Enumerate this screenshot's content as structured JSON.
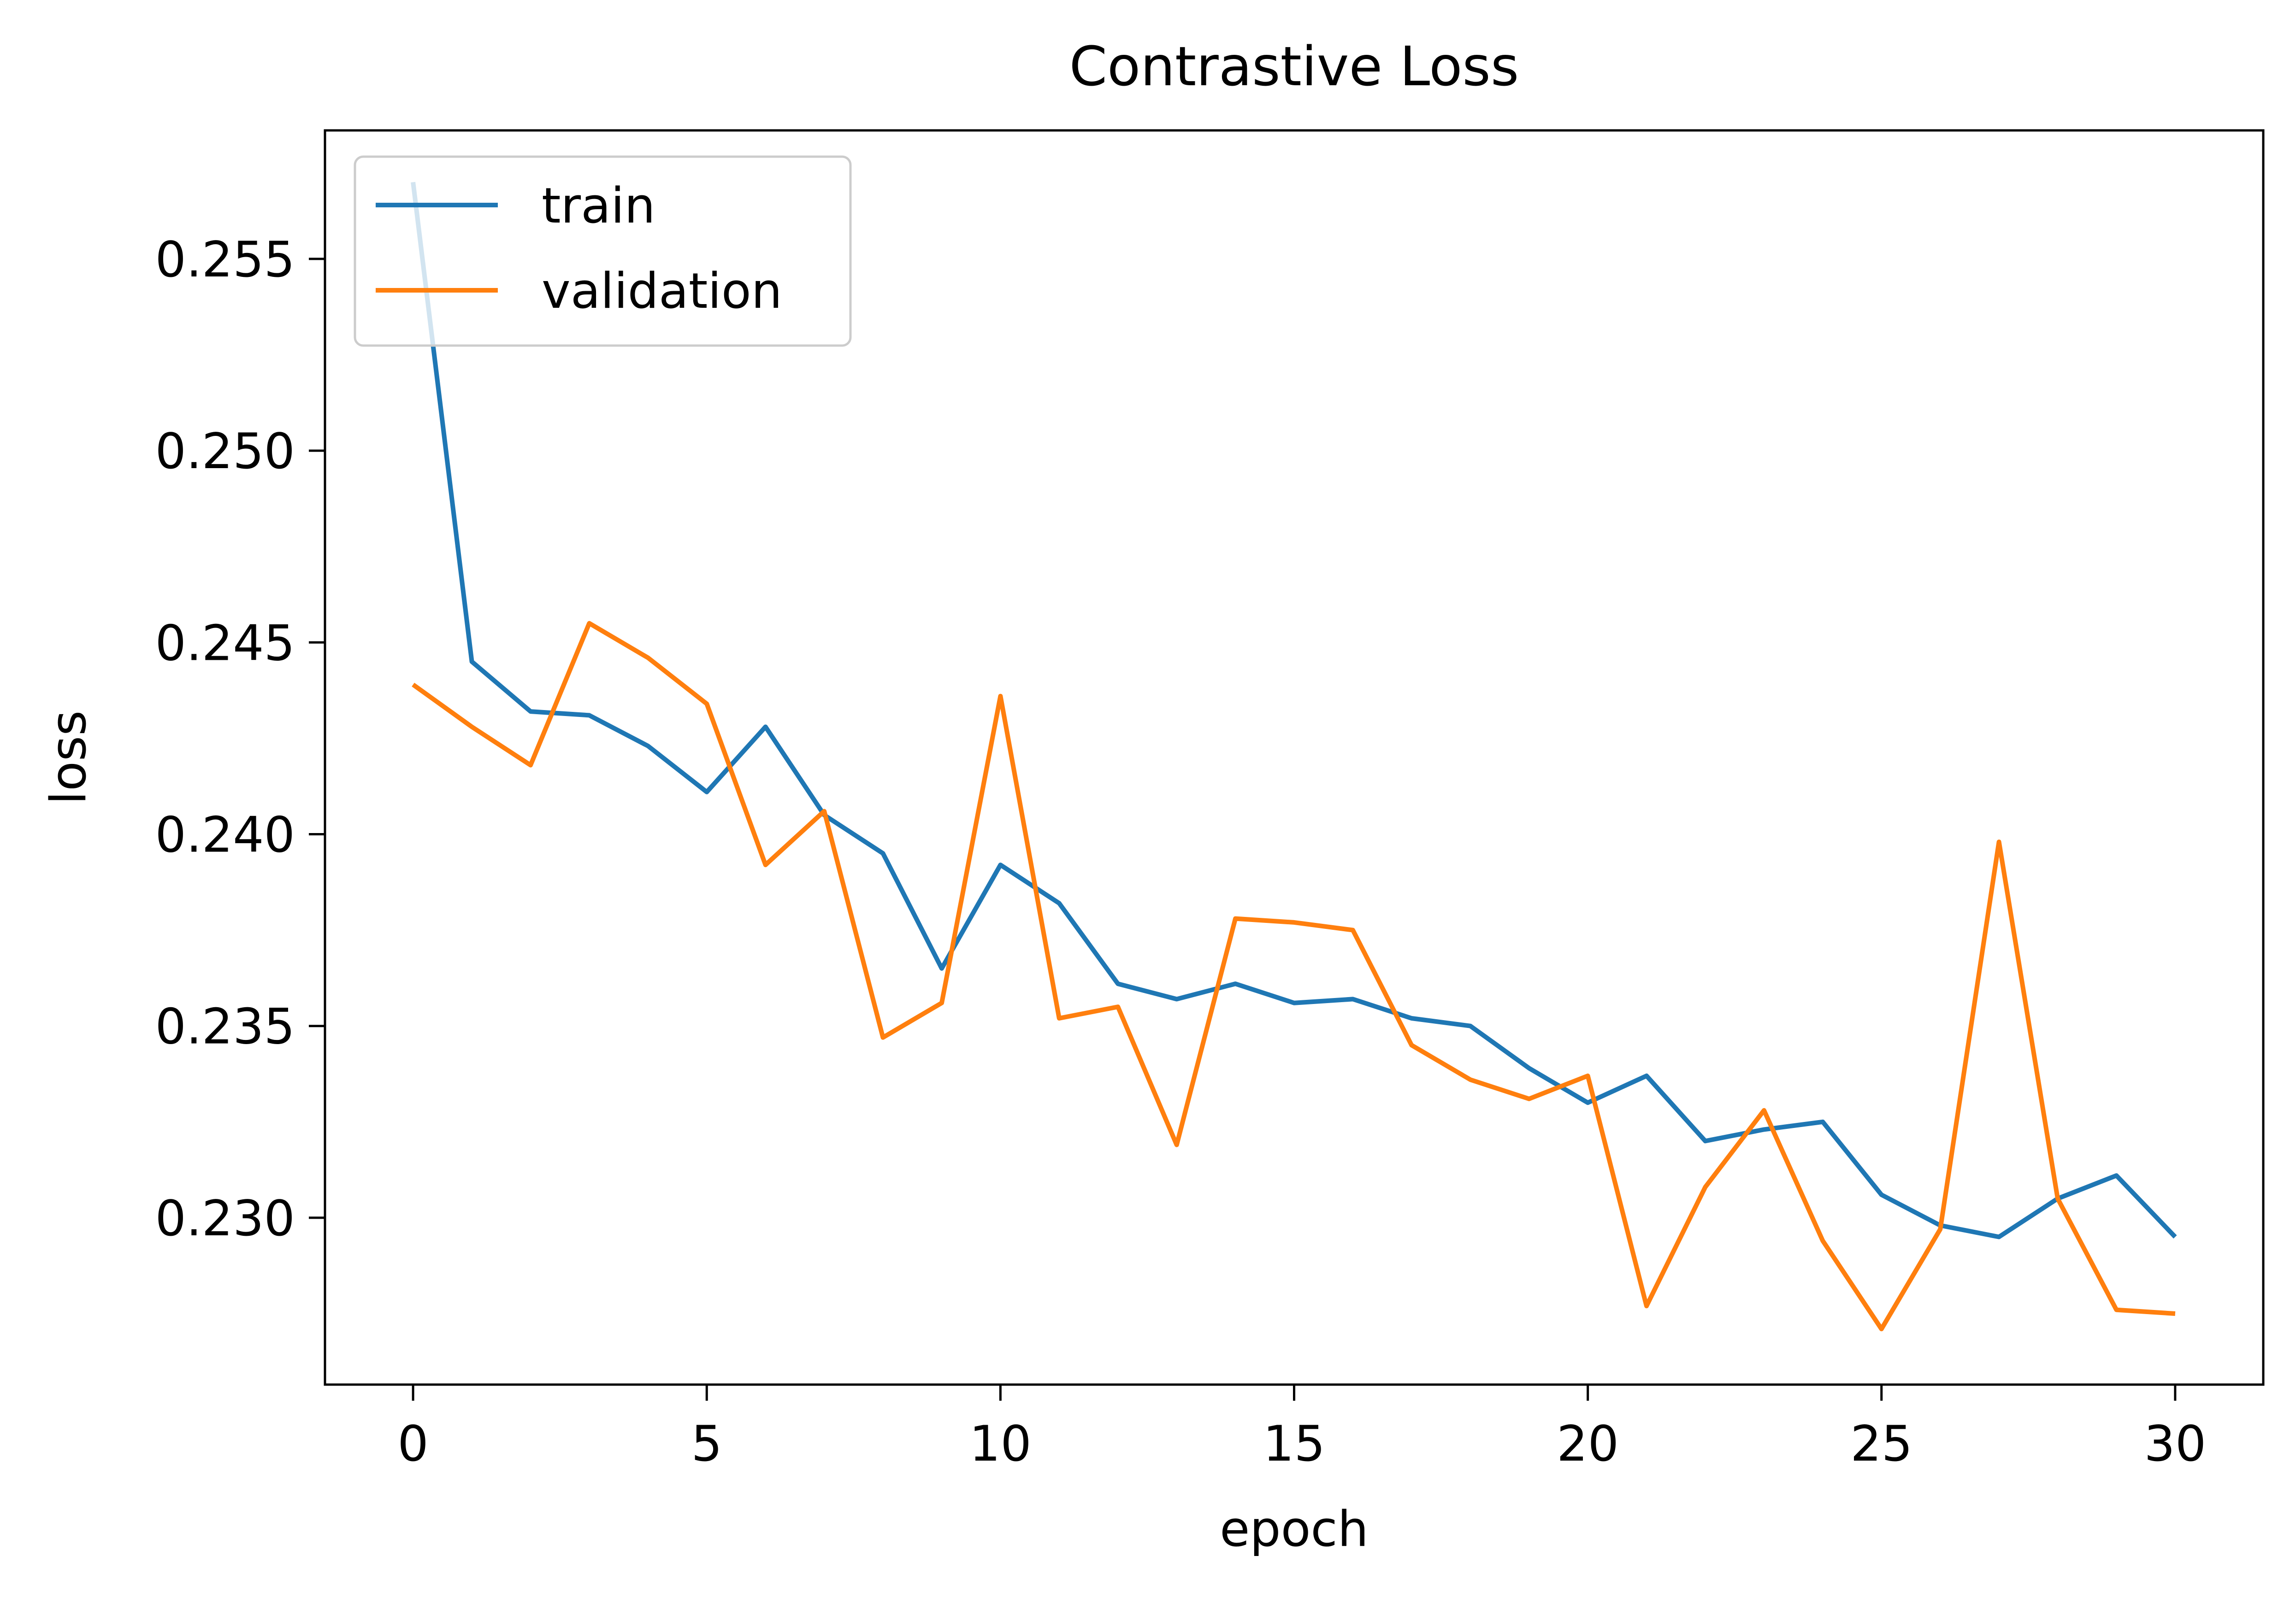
{
  "chart_data": {
    "type": "line",
    "title": "Contrastive Loss",
    "xlabel": "epoch",
    "ylabel": "loss",
    "xlim": [
      -1.5,
      31.5
    ],
    "ylim": [
      0.22565,
      0.25835
    ],
    "xticks": [
      0,
      5,
      10,
      15,
      20,
      25,
      30
    ],
    "yticks": [
      0.23,
      0.235,
      0.24,
      0.245,
      0.25,
      0.255
    ],
    "xtick_labels": [
      "0",
      "5",
      "10",
      "15",
      "20",
      "25",
      "30"
    ],
    "ytick_labels": [
      "0.230",
      "0.235",
      "0.240",
      "0.245",
      "0.250",
      "0.255"
    ],
    "grid": false,
    "legend_position": "upper-left",
    "x": [
      0,
      1,
      2,
      3,
      4,
      5,
      6,
      7,
      8,
      9,
      10,
      11,
      12,
      13,
      14,
      15,
      16,
      17,
      18,
      19,
      20,
      21,
      22,
      23,
      24,
      25,
      26,
      27,
      28,
      29,
      30
    ],
    "series": [
      {
        "name": "train",
        "color": "#1f77b4",
        "values": [
          0.257,
          0.2445,
          0.2432,
          0.2431,
          0.2423,
          0.2411,
          0.2428,
          0.2405,
          0.2395,
          0.2365,
          0.2392,
          0.2382,
          0.2361,
          0.2357,
          0.2361,
          0.2356,
          0.2357,
          0.2352,
          0.235,
          0.2339,
          0.233,
          0.2337,
          0.232,
          0.2323,
          0.2325,
          0.2306,
          0.2298,
          0.2295,
          0.2305,
          0.2311,
          0.2295
        ]
      },
      {
        "name": "validation",
        "color": "#ff7f0e",
        "values": [
          0.2439,
          0.2428,
          0.2418,
          0.2455,
          0.2446,
          0.2434,
          0.2392,
          0.2406,
          0.2347,
          0.2356,
          0.2436,
          0.2352,
          0.2355,
          0.2319,
          0.2378,
          0.2377,
          0.2375,
          0.2345,
          0.2336,
          0.2331,
          0.2337,
          0.2277,
          0.2308,
          0.2328,
          0.2294,
          0.2271,
          0.2297,
          0.2398,
          0.2305,
          0.2276,
          0.2275
        ]
      }
    ]
  }
}
